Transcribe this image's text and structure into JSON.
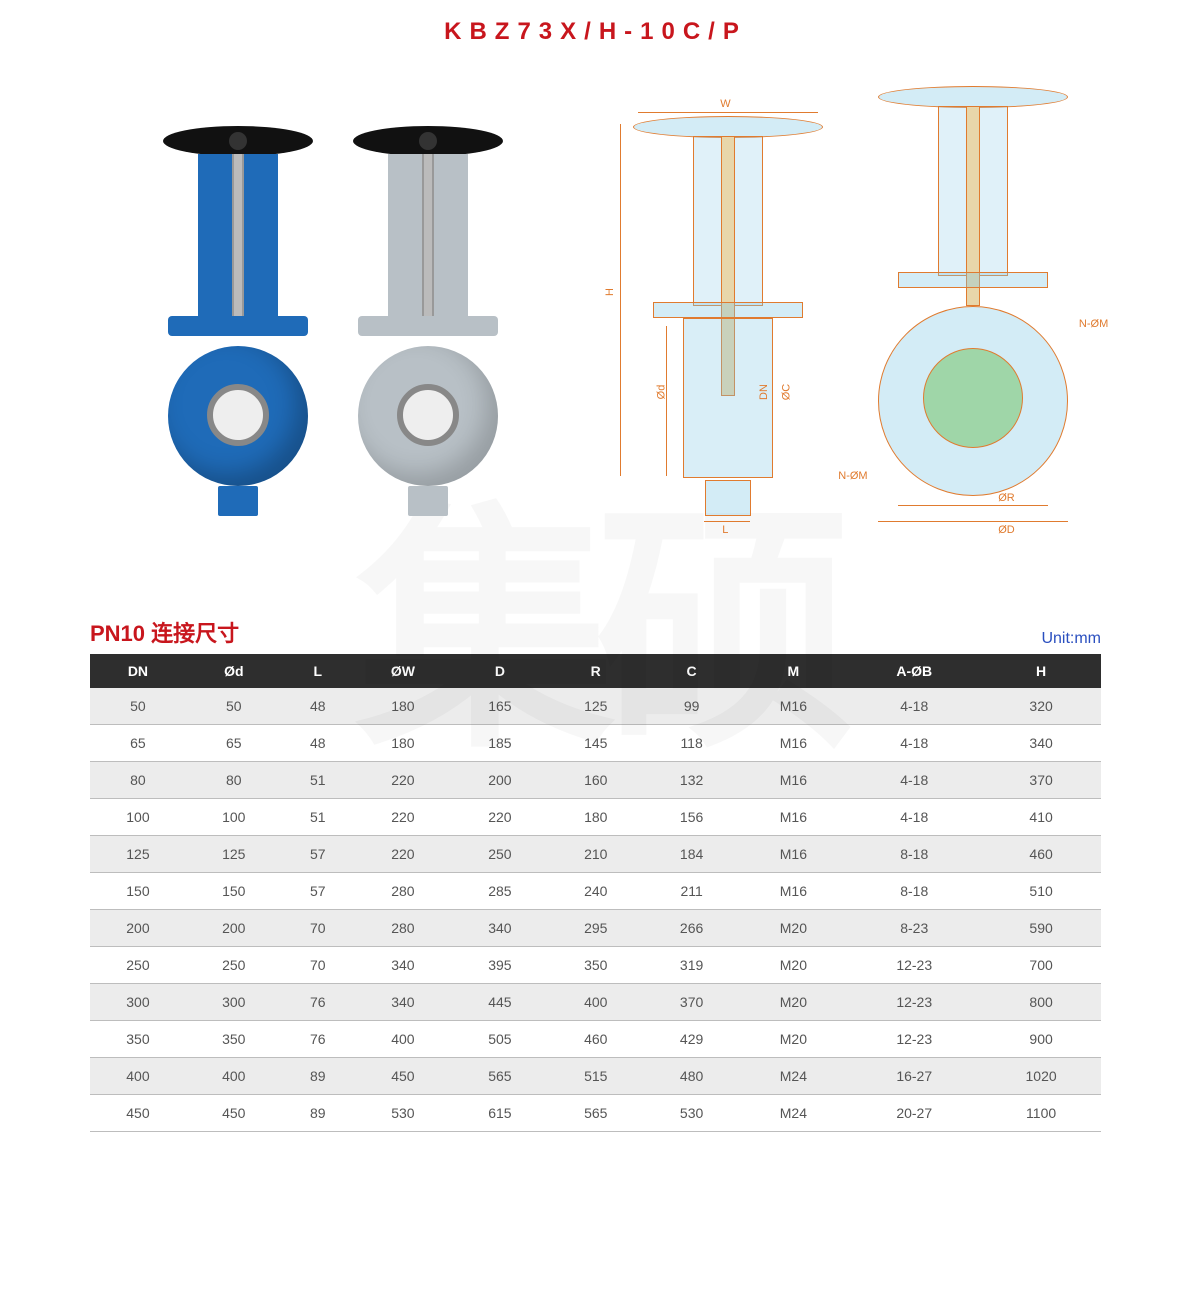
{
  "title": "KBZ73X/H-10C/P",
  "watermark": "集硕",
  "section_title": "PN10 连接尺寸",
  "unit_label": "Unit:mm",
  "schematic_labels": {
    "W": "W",
    "H": "H",
    "Od": "Ød",
    "L": "L",
    "DN": "DN",
    "OC": "ØC",
    "NOM1": "N-ØM",
    "NOM2": "N-ØM",
    "OR": "ØR",
    "OD": "ØD"
  },
  "table": {
    "columns": [
      "DN",
      "Ød",
      "L",
      "ØW",
      "D",
      "R",
      "C",
      "M",
      "A-ØB",
      "H"
    ],
    "rows": [
      [
        "50",
        "50",
        "48",
        "180",
        "165",
        "125",
        "99",
        "M16",
        "4-18",
        "320"
      ],
      [
        "65",
        "65",
        "48",
        "180",
        "185",
        "145",
        "118",
        "M16",
        "4-18",
        "340"
      ],
      [
        "80",
        "80",
        "51",
        "220",
        "200",
        "160",
        "132",
        "M16",
        "4-18",
        "370"
      ],
      [
        "100",
        "100",
        "51",
        "220",
        "220",
        "180",
        "156",
        "M16",
        "4-18",
        "410"
      ],
      [
        "125",
        "125",
        "57",
        "220",
        "250",
        "210",
        "184",
        "M16",
        "8-18",
        "460"
      ],
      [
        "150",
        "150",
        "57",
        "280",
        "285",
        "240",
        "211",
        "M16",
        "8-18",
        "510"
      ],
      [
        "200",
        "200",
        "70",
        "280",
        "340",
        "295",
        "266",
        "M20",
        "8-23",
        "590"
      ],
      [
        "250",
        "250",
        "70",
        "340",
        "395",
        "350",
        "319",
        "M20",
        "12-23",
        "700"
      ],
      [
        "300",
        "300",
        "76",
        "340",
        "445",
        "400",
        "370",
        "M20",
        "12-23",
        "800"
      ],
      [
        "350",
        "350",
        "76",
        "400",
        "505",
        "460",
        "429",
        "M20",
        "12-23",
        "900"
      ],
      [
        "400",
        "400",
        "89",
        "450",
        "565",
        "515",
        "480",
        "M24",
        "16-27",
        "1020"
      ],
      [
        "450",
        "450",
        "89",
        "530",
        "615",
        "565",
        "530",
        "M24",
        "20-27",
        "1100"
      ]
    ]
  },
  "colors": {
    "brand_red": "#c8161d",
    "schematic_line": "#e07b2f",
    "schematic_fill": "rgba(130,200,230,.35)",
    "valve_blue": "#1f6bb8",
    "valve_steel": "#b8c0c6",
    "table_header_bg": "#2e2e2e",
    "row_alt_bg": "#ececec",
    "unit_blue": "#2a4fbf"
  }
}
